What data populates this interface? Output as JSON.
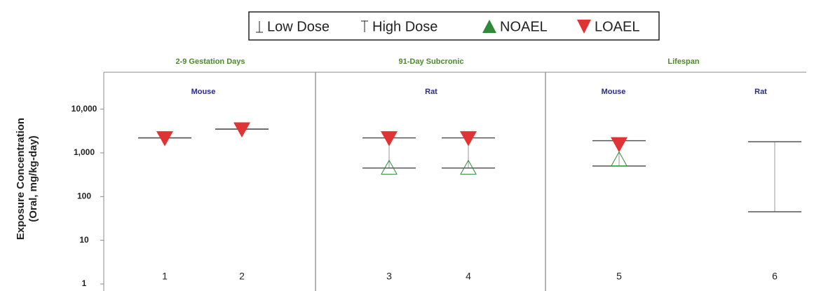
{
  "chart_data": {
    "type": "dose-range",
    "ylabel": [
      "Exposure Concentration",
      "(Oral,  mg/kg-day)"
    ],
    "log_scale": true,
    "ylim": [
      1,
      70000
    ],
    "yticks": [
      1,
      10,
      100,
      {
        "value": 1000,
        "label": "1,000"
      },
      {
        "value": 10000,
        "label": "10,000"
      }
    ],
    "categories": [
      "1",
      "2",
      "3",
      "4",
      "5",
      "6"
    ],
    "panels": [
      {
        "title": "2-9 Gestation Days",
        "groups": [
          "Mouse"
        ]
      },
      {
        "title": "91-Day Subcronic",
        "groups": [
          "Rat"
        ]
      },
      {
        "title": "Lifespan",
        "groups": [
          "Mouse",
          "Rat"
        ]
      }
    ],
    "series": [
      {
        "name": "Low Dose",
        "color": "#555555",
        "values": [
          2200,
          3500,
          450,
          450,
          500,
          45
        ]
      },
      {
        "name": "High Dose",
        "color": "#555555",
        "values": [
          2200,
          3500,
          2200,
          2200,
          1900,
          1800
        ]
      },
      {
        "name": "NOAEL",
        "color": "#2e8b3a",
        "values": [
          null,
          null,
          450,
          450,
          700,
          null
        ]
      },
      {
        "name": "LOAEL",
        "color": "#e03434",
        "values": [
          2200,
          3500,
          2200,
          2200,
          1600,
          null
        ]
      }
    ]
  }
}
